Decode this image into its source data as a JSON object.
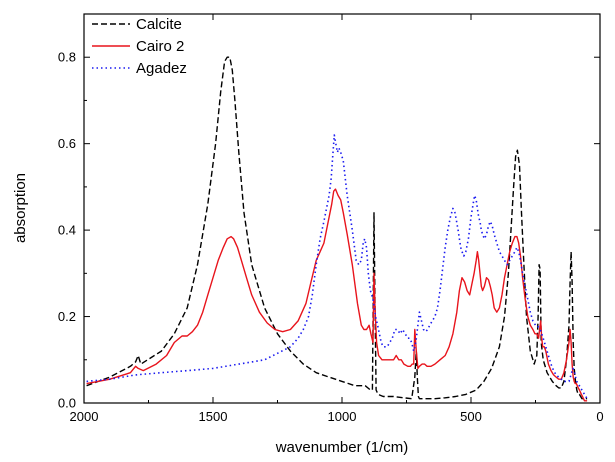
{
  "chart_data": {
    "type": "line",
    "xlabel": "wavenumber (1/cm)",
    "ylabel": "absorption",
    "xlim": [
      2000,
      0
    ],
    "ylim": [
      0,
      0.9
    ],
    "x_reversed": true,
    "x_ticks": [
      2000,
      1500,
      1000,
      500,
      0
    ],
    "y_ticks": [
      0.0,
      0.2,
      0.4,
      0.6,
      0.8
    ],
    "x_tick_labels": [
      "2000",
      "1500",
      "1000",
      "500",
      "0"
    ],
    "y_tick_labels": [
      "0.0",
      "0.2",
      "0.4",
      "0.6",
      "0.8"
    ],
    "grid": false,
    "legend_position": "top-left",
    "series": [
      {
        "name": "Calcite",
        "color": "#000000",
        "style": "dashed",
        "x": [
          1990,
          1900,
          1820,
          1800,
          1790,
          1780,
          1700,
          1650,
          1600,
          1560,
          1520,
          1490,
          1470,
          1455,
          1445,
          1435,
          1425,
          1415,
          1400,
          1380,
          1350,
          1300,
          1250,
          1200,
          1150,
          1100,
          1050,
          1000,
          950,
          910,
          890,
          882,
          876,
          872,
          868,
          860,
          840,
          800,
          760,
          730,
          718,
          712,
          708,
          704,
          700,
          690,
          670,
          640,
          600,
          560,
          520,
          480,
          450,
          420,
          390,
          370,
          355,
          345,
          335,
          327,
          320,
          312,
          305,
          295,
          285,
          270,
          255,
          245,
          240,
          236,
          232,
          228,
          220,
          205,
          185,
          170,
          160,
          150,
          140,
          130,
          120,
          116,
          112,
          108,
          104,
          100,
          95,
          90,
          85,
          80,
          75,
          70,
          60,
          50
        ],
        "y": [
          0.04,
          0.06,
          0.085,
          0.095,
          0.11,
          0.09,
          0.12,
          0.16,
          0.22,
          0.32,
          0.46,
          0.6,
          0.72,
          0.79,
          0.8,
          0.8,
          0.77,
          0.7,
          0.58,
          0.44,
          0.32,
          0.22,
          0.16,
          0.12,
          0.09,
          0.07,
          0.06,
          0.05,
          0.04,
          0.04,
          0.03,
          0.03,
          0.44,
          0.23,
          0.03,
          0.02,
          0.015,
          0.015,
          0.012,
          0.01,
          0.06,
          0.12,
          0.06,
          0.015,
          0.01,
          0.01,
          0.01,
          0.01,
          0.012,
          0.015,
          0.02,
          0.03,
          0.05,
          0.08,
          0.13,
          0.2,
          0.3,
          0.4,
          0.5,
          0.57,
          0.585,
          0.55,
          0.45,
          0.32,
          0.2,
          0.12,
          0.09,
          0.11,
          0.2,
          0.32,
          0.31,
          0.14,
          0.1,
          0.07,
          0.05,
          0.04,
          0.035,
          0.035,
          0.05,
          0.1,
          0.18,
          0.28,
          0.35,
          0.28,
          0.14,
          0.08,
          0.05,
          0.03,
          0.02,
          0.02,
          0.015,
          0.01,
          0.01,
          0.01
        ]
      },
      {
        "name": "Cairo 2",
        "color": "#e8141c",
        "style": "solid",
        "x": [
          1990,
          1900,
          1820,
          1800,
          1790,
          1770,
          1720,
          1680,
          1650,
          1620,
          1600,
          1580,
          1560,
          1540,
          1520,
          1500,
          1480,
          1460,
          1445,
          1430,
          1420,
          1405,
          1390,
          1370,
          1350,
          1320,
          1290,
          1260,
          1230,
          1200,
          1170,
          1140,
          1120,
          1100,
          1085,
          1070,
          1060,
          1050,
          1040,
          1032,
          1025,
          1015,
          1005,
          995,
          980,
          960,
          940,
          925,
          915,
          905,
          895,
          888,
          880,
          876,
          872,
          866,
          858,
          845,
          830,
          815,
          800,
          790,
          780,
          770,
          760,
          745,
          735,
          728,
          722,
          718,
          712,
          706,
          700,
          690,
          680,
          670,
          655,
          640,
          620,
          600,
          585,
          570,
          555,
          545,
          535,
          525,
          515,
          505,
          495,
          488,
          480,
          475,
          470,
          465,
          460,
          455,
          448,
          440,
          432,
          425,
          418,
          410,
          400,
          390,
          380,
          370,
          360,
          350,
          340,
          330,
          322,
          315,
          308,
          300,
          290,
          280,
          270,
          260,
          252,
          245,
          238,
          234,
          230,
          226,
          222,
          216,
          210,
          200,
          190,
          180,
          170,
          160,
          150,
          140,
          130,
          120,
          116,
          112,
          108,
          104,
          100,
          96,
          92,
          88,
          84,
          80,
          76,
          72,
          68,
          64,
          60,
          55,
          50
        ],
        "y": [
          0.045,
          0.055,
          0.07,
          0.085,
          0.08,
          0.075,
          0.09,
          0.11,
          0.14,
          0.155,
          0.155,
          0.165,
          0.18,
          0.21,
          0.25,
          0.29,
          0.33,
          0.36,
          0.38,
          0.385,
          0.38,
          0.36,
          0.33,
          0.29,
          0.25,
          0.21,
          0.185,
          0.17,
          0.165,
          0.17,
          0.19,
          0.23,
          0.28,
          0.33,
          0.35,
          0.37,
          0.4,
          0.43,
          0.46,
          0.49,
          0.495,
          0.48,
          0.47,
          0.44,
          0.39,
          0.32,
          0.23,
          0.18,
          0.17,
          0.17,
          0.18,
          0.16,
          0.14,
          0.3,
          0.22,
          0.14,
          0.11,
          0.1,
          0.1,
          0.1,
          0.1,
          0.11,
          0.1,
          0.1,
          0.09,
          0.085,
          0.085,
          0.09,
          0.09,
          0.17,
          0.12,
          0.08,
          0.085,
          0.09,
          0.09,
          0.085,
          0.085,
          0.09,
          0.1,
          0.11,
          0.13,
          0.16,
          0.21,
          0.26,
          0.29,
          0.28,
          0.26,
          0.25,
          0.28,
          0.3,
          0.33,
          0.35,
          0.33,
          0.3,
          0.27,
          0.26,
          0.27,
          0.29,
          0.285,
          0.27,
          0.25,
          0.22,
          0.21,
          0.22,
          0.25,
          0.29,
          0.32,
          0.35,
          0.37,
          0.385,
          0.385,
          0.37,
          0.34,
          0.29,
          0.24,
          0.2,
          0.18,
          0.17,
          0.16,
          0.16,
          0.15,
          0.17,
          0.19,
          0.15,
          0.13,
          0.13,
          0.12,
          0.09,
          0.075,
          0.065,
          0.06,
          0.055,
          0.055,
          0.07,
          0.1,
          0.14,
          0.17,
          0.14,
          0.09,
          0.06,
          0.05,
          0.045,
          0.045,
          0.04,
          0.035,
          0.03,
          0.025,
          0.02,
          0.015,
          0.01,
          0.005,
          0.005,
          0.005
        ]
      },
      {
        "name": "Agadez",
        "color": "#1a1af0",
        "style": "dotted",
        "x": [
          1990,
          1900,
          1800,
          1700,
          1600,
          1500,
          1400,
          1300,
          1250,
          1200,
          1170,
          1150,
          1130,
          1115,
          1100,
          1085,
          1070,
          1060,
          1050,
          1042,
          1036,
          1030,
          1024,
          1018,
          1012,
          1005,
          995,
          980,
          960,
          945,
          935,
          925,
          918,
          912,
          905,
          898,
          890,
          880,
          875,
          870,
          862,
          855,
          848,
          840,
          832,
          825,
          815,
          805,
          795,
          785,
          775,
          765,
          755,
          745,
          738,
          730,
          722,
          714,
          706,
          700,
          692,
          684,
          676,
          668,
          660,
          650,
          640,
          630,
          620,
          610,
          600,
          590,
          580,
          570,
          562,
          556,
          550,
          545,
          540,
          535,
          528,
          520,
          510,
          500,
          492,
          486,
          480,
          475,
          470,
          465,
          460,
          455,
          448,
          440,
          432,
          425,
          418,
          410,
          400,
          390,
          380,
          370,
          360,
          350,
          340,
          330,
          322,
          315,
          308,
          300,
          290,
          280,
          270,
          260,
          250,
          244,
          238,
          232,
          226,
          220,
          210,
          200,
          190,
          180,
          170,
          160,
          150,
          140,
          130,
          120,
          115,
          110,
          105,
          100,
          95,
          90,
          85,
          80,
          75,
          70,
          65,
          60,
          55,
          50
        ],
        "y": [
          0.05,
          0.055,
          0.065,
          0.07,
          0.075,
          0.08,
          0.09,
          0.1,
          0.115,
          0.13,
          0.15,
          0.17,
          0.2,
          0.25,
          0.32,
          0.38,
          0.42,
          0.45,
          0.48,
          0.52,
          0.57,
          0.62,
          0.6,
          0.58,
          0.59,
          0.58,
          0.56,
          0.48,
          0.4,
          0.33,
          0.32,
          0.33,
          0.37,
          0.38,
          0.36,
          0.3,
          0.26,
          0.24,
          0.22,
          0.2,
          0.18,
          0.16,
          0.14,
          0.13,
          0.13,
          0.13,
          0.14,
          0.15,
          0.17,
          0.17,
          0.16,
          0.17,
          0.16,
          0.15,
          0.15,
          0.14,
          0.12,
          0.14,
          0.18,
          0.21,
          0.19,
          0.17,
          0.165,
          0.17,
          0.18,
          0.19,
          0.2,
          0.22,
          0.26,
          0.31,
          0.36,
          0.4,
          0.43,
          0.45,
          0.44,
          0.42,
          0.4,
          0.38,
          0.36,
          0.35,
          0.34,
          0.35,
          0.38,
          0.43,
          0.46,
          0.48,
          0.47,
          0.45,
          0.43,
          0.42,
          0.4,
          0.39,
          0.38,
          0.39,
          0.41,
          0.42,
          0.41,
          0.39,
          0.37,
          0.35,
          0.34,
          0.33,
          0.32,
          0.33,
          0.34,
          0.35,
          0.36,
          0.35,
          0.33,
          0.3,
          0.27,
          0.24,
          0.21,
          0.19,
          0.18,
          0.18,
          0.175,
          0.17,
          0.16,
          0.15,
          0.13,
          0.11,
          0.09,
          0.075,
          0.065,
          0.06,
          0.055,
          0.05,
          0.05,
          0.05,
          0.06,
          0.07,
          0.08,
          0.075,
          0.06,
          0.05,
          0.045,
          0.04,
          0.035,
          0.03,
          0.025,
          0.02,
          0.015,
          0.01
        ]
      }
    ]
  }
}
